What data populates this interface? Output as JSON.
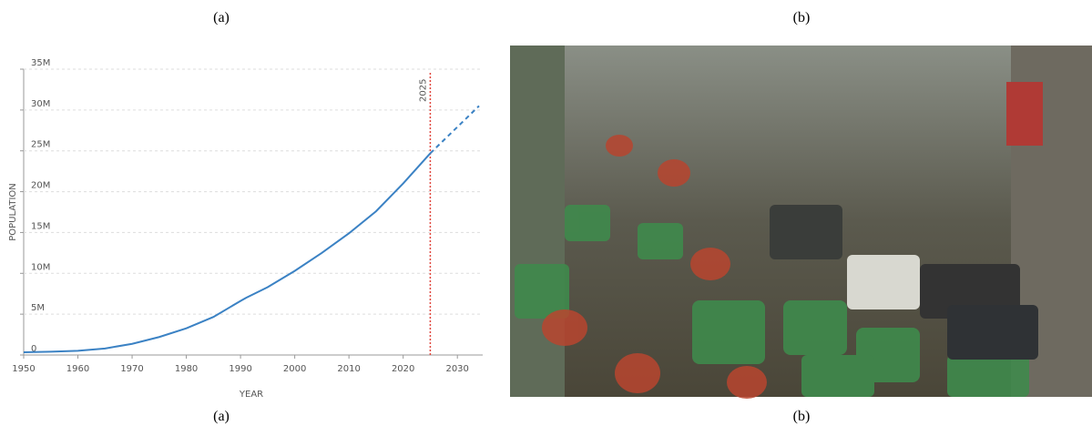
{
  "captions": {
    "top_a": "(a)",
    "top_b": "(b)",
    "bottom_a": "(a)",
    "bottom_b": "(b)"
  },
  "chart_data": {
    "type": "line",
    "x_label": "YEAR",
    "y_label": "POPULATION",
    "xlim": [
      1950,
      2034
    ],
    "xticks": [
      1950,
      1960,
      1970,
      1980,
      1990,
      2000,
      2010,
      2020,
      2030
    ],
    "ylim": [
      0,
      35000000
    ],
    "yticks": [
      0,
      {
        "value": 5000000,
        "label": "5M"
      },
      {
        "value": 10000000,
        "label": "10M"
      },
      {
        "value": 15000000,
        "label": "15M"
      },
      {
        "value": 20000000,
        "label": "20M"
      },
      {
        "value": 25000000,
        "label": "25M"
      },
      {
        "value": 30000000,
        "label": "30M"
      },
      {
        "value": 35000000,
        "label": "35M"
      }
    ],
    "grid": true,
    "series": [
      {
        "color": "#3b82c4",
        "style": "solid",
        "x": [
          1950,
          1955,
          1960,
          1965,
          1970,
          1975,
          1980,
          1985,
          1990,
          1991,
          1995,
          2000,
          2005,
          2010,
          2015,
          2020,
          2025
        ],
        "values": [
          340000,
          410000,
          510000,
          800000,
          1370000,
          2200000,
          3270000,
          4660000,
          6620000,
          7000000,
          8300000,
          10300000,
          12500000,
          14900000,
          17600000,
          21000000,
          24700000
        ]
      },
      {
        "color": "#3b82c4",
        "style": "dashed",
        "x": [
          2025,
          2034
        ],
        "values": [
          24700000,
          30500000
        ]
      }
    ],
    "annotations": [
      {
        "x": 2025,
        "label": "2025",
        "color": "#e0453c"
      }
    ]
  }
}
